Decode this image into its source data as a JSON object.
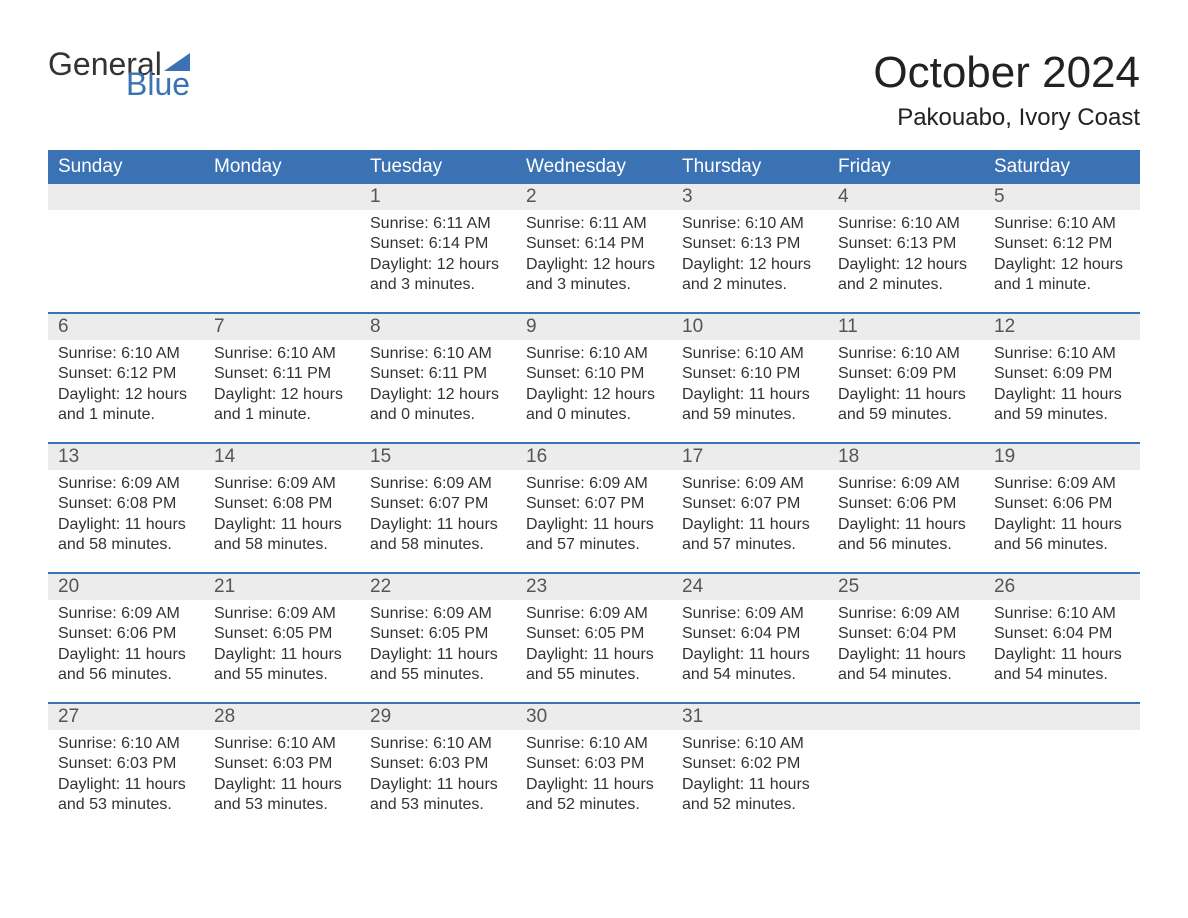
{
  "logo": {
    "general": "General",
    "blue": "Blue",
    "accent_color": "#3b72b3"
  },
  "title": "October 2024",
  "subtitle": "Pakouabo, Ivory Coast",
  "calendar": {
    "header_bg": "#3b72b3",
    "header_fg": "#ffffff",
    "daynum_bg": "#ececec",
    "week_divider_color": "#3b72b3",
    "text_color": "#333333",
    "headers": [
      "Sunday",
      "Monday",
      "Tuesday",
      "Wednesday",
      "Thursday",
      "Friday",
      "Saturday"
    ],
    "weeks": [
      [
        {
          "n": "",
          "sunrise": "",
          "sunset": "",
          "daylight": ""
        },
        {
          "n": "",
          "sunrise": "",
          "sunset": "",
          "daylight": ""
        },
        {
          "n": "1",
          "sunrise": "6:11 AM",
          "sunset": "6:14 PM",
          "daylight": "12 hours and 3 minutes."
        },
        {
          "n": "2",
          "sunrise": "6:11 AM",
          "sunset": "6:14 PM",
          "daylight": "12 hours and 3 minutes."
        },
        {
          "n": "3",
          "sunrise": "6:10 AM",
          "sunset": "6:13 PM",
          "daylight": "12 hours and 2 minutes."
        },
        {
          "n": "4",
          "sunrise": "6:10 AM",
          "sunset": "6:13 PM",
          "daylight": "12 hours and 2 minutes."
        },
        {
          "n": "5",
          "sunrise": "6:10 AM",
          "sunset": "6:12 PM",
          "daylight": "12 hours and 1 minute."
        }
      ],
      [
        {
          "n": "6",
          "sunrise": "6:10 AM",
          "sunset": "6:12 PM",
          "daylight": "12 hours and 1 minute."
        },
        {
          "n": "7",
          "sunrise": "6:10 AM",
          "sunset": "6:11 PM",
          "daylight": "12 hours and 1 minute."
        },
        {
          "n": "8",
          "sunrise": "6:10 AM",
          "sunset": "6:11 PM",
          "daylight": "12 hours and 0 minutes."
        },
        {
          "n": "9",
          "sunrise": "6:10 AM",
          "sunset": "6:10 PM",
          "daylight": "12 hours and 0 minutes."
        },
        {
          "n": "10",
          "sunrise": "6:10 AM",
          "sunset": "6:10 PM",
          "daylight": "11 hours and 59 minutes."
        },
        {
          "n": "11",
          "sunrise": "6:10 AM",
          "sunset": "6:09 PM",
          "daylight": "11 hours and 59 minutes."
        },
        {
          "n": "12",
          "sunrise": "6:10 AM",
          "sunset": "6:09 PM",
          "daylight": "11 hours and 59 minutes."
        }
      ],
      [
        {
          "n": "13",
          "sunrise": "6:09 AM",
          "sunset": "6:08 PM",
          "daylight": "11 hours and 58 minutes."
        },
        {
          "n": "14",
          "sunrise": "6:09 AM",
          "sunset": "6:08 PM",
          "daylight": "11 hours and 58 minutes."
        },
        {
          "n": "15",
          "sunrise": "6:09 AM",
          "sunset": "6:07 PM",
          "daylight": "11 hours and 58 minutes."
        },
        {
          "n": "16",
          "sunrise": "6:09 AM",
          "sunset": "6:07 PM",
          "daylight": "11 hours and 57 minutes."
        },
        {
          "n": "17",
          "sunrise": "6:09 AM",
          "sunset": "6:07 PM",
          "daylight": "11 hours and 57 minutes."
        },
        {
          "n": "18",
          "sunrise": "6:09 AM",
          "sunset": "6:06 PM",
          "daylight": "11 hours and 56 minutes."
        },
        {
          "n": "19",
          "sunrise": "6:09 AM",
          "sunset": "6:06 PM",
          "daylight": "11 hours and 56 minutes."
        }
      ],
      [
        {
          "n": "20",
          "sunrise": "6:09 AM",
          "sunset": "6:06 PM",
          "daylight": "11 hours and 56 minutes."
        },
        {
          "n": "21",
          "sunrise": "6:09 AM",
          "sunset": "6:05 PM",
          "daylight": "11 hours and 55 minutes."
        },
        {
          "n": "22",
          "sunrise": "6:09 AM",
          "sunset": "6:05 PM",
          "daylight": "11 hours and 55 minutes."
        },
        {
          "n": "23",
          "sunrise": "6:09 AM",
          "sunset": "6:05 PM",
          "daylight": "11 hours and 55 minutes."
        },
        {
          "n": "24",
          "sunrise": "6:09 AM",
          "sunset": "6:04 PM",
          "daylight": "11 hours and 54 minutes."
        },
        {
          "n": "25",
          "sunrise": "6:09 AM",
          "sunset": "6:04 PM",
          "daylight": "11 hours and 54 minutes."
        },
        {
          "n": "26",
          "sunrise": "6:10 AM",
          "sunset": "6:04 PM",
          "daylight": "11 hours and 54 minutes."
        }
      ],
      [
        {
          "n": "27",
          "sunrise": "6:10 AM",
          "sunset": "6:03 PM",
          "daylight": "11 hours and 53 minutes."
        },
        {
          "n": "28",
          "sunrise": "6:10 AM",
          "sunset": "6:03 PM",
          "daylight": "11 hours and 53 minutes."
        },
        {
          "n": "29",
          "sunrise": "6:10 AM",
          "sunset": "6:03 PM",
          "daylight": "11 hours and 53 minutes."
        },
        {
          "n": "30",
          "sunrise": "6:10 AM",
          "sunset": "6:03 PM",
          "daylight": "11 hours and 52 minutes."
        },
        {
          "n": "31",
          "sunrise": "6:10 AM",
          "sunset": "6:02 PM",
          "daylight": "11 hours and 52 minutes."
        },
        {
          "n": "",
          "sunrise": "",
          "sunset": "",
          "daylight": ""
        },
        {
          "n": "",
          "sunrise": "",
          "sunset": "",
          "daylight": ""
        }
      ]
    ],
    "labels": {
      "sunrise": "Sunrise:",
      "sunset": "Sunset:",
      "daylight": "Daylight:"
    }
  }
}
